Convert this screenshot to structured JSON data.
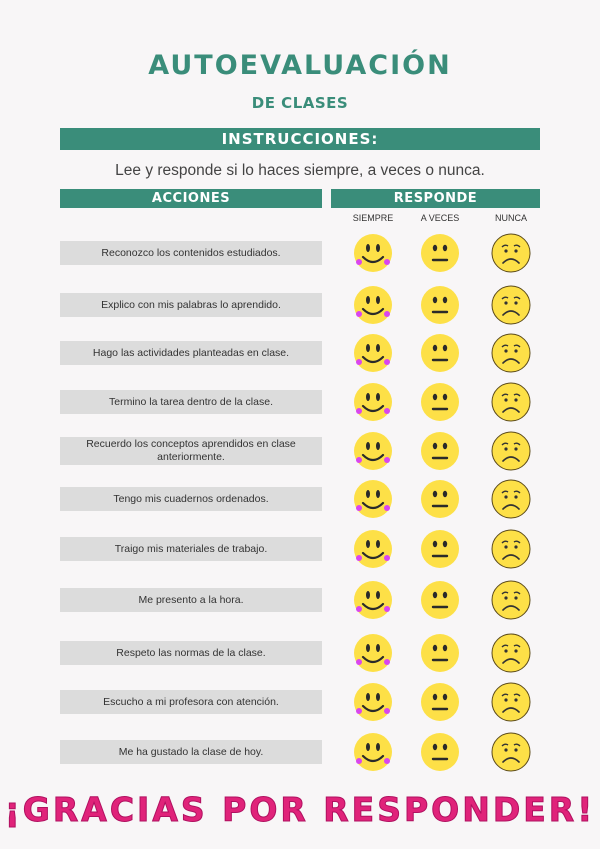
{
  "title": "AUTOEVALUACIÓN",
  "subtitle": "DE CLASES",
  "instructions_header": "INSTRUCCIONES:",
  "instructions_text": "Lee y responde si lo haces siempre, a veces o nunca.",
  "actions_header": "ACCIONES",
  "respond_header": "RESPONDE",
  "columns": [
    "SIEMPRE",
    "A VECES",
    "NUNCA"
  ],
  "colors": {
    "accent": "#3a8d7a",
    "face": "#fde047",
    "cheek": "#d946ef",
    "thanks": "#e0237a"
  },
  "actions": [
    "Reconozco los contenidos estudiados.",
    "Explico con mis palabras lo aprendido.",
    "Hago las actividades planteadas en clase.",
    "Termino la tarea dentro de la clase.",
    "Recuerdo los conceptos aprendidos en clase anteriormente.",
    "Tengo mis cuadernos ordenados.",
    "Traigo mis materiales de trabajo.",
    "Me presento a la hora.",
    "Respeto las normas de la clase.",
    "Escucho a mi profesora con atención.",
    "Me ha gustado la clase de hoy."
  ],
  "icons": [
    "happy-face-icon",
    "neutral-face-icon",
    "sad-face-icon"
  ],
  "footer": "¡GRACIAS POR RESPONDER!"
}
